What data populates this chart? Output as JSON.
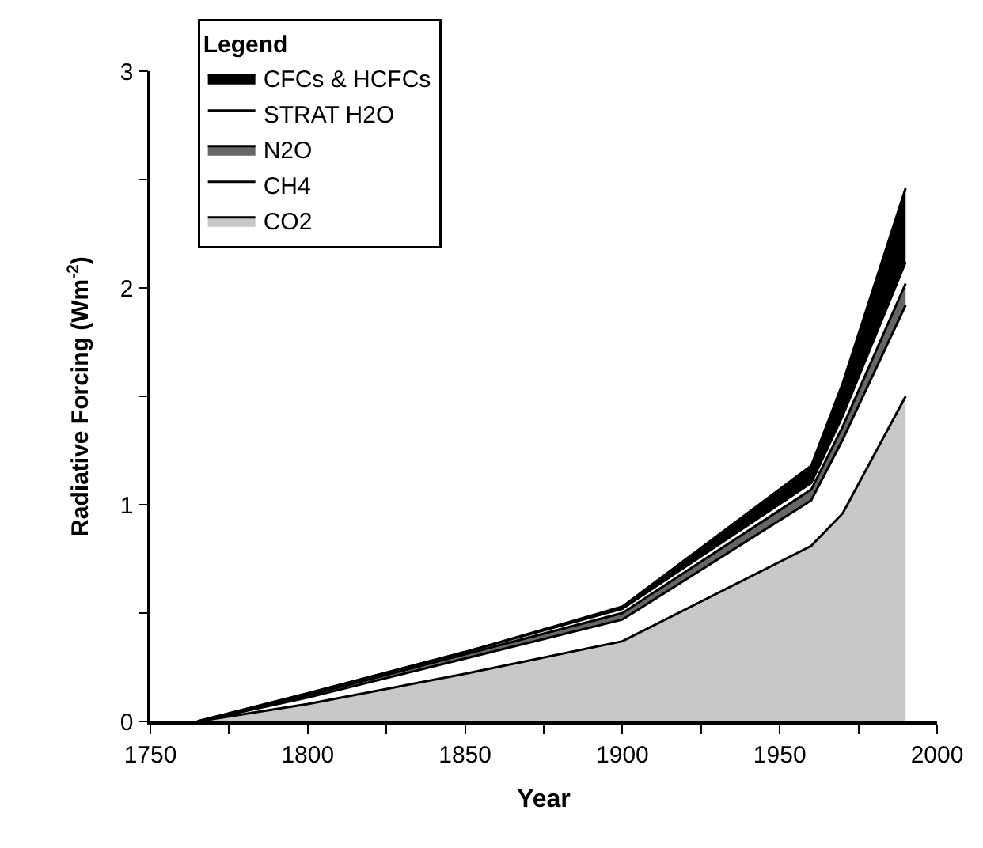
{
  "chart_data": {
    "type": "area",
    "stacked": true,
    "xlabel": "Year",
    "ylabel": "Radiative Forcing (Wm$^{-2}$)",
    "legend_title": "Legend",
    "legend": "top left",
    "grid": false,
    "marker": "none",
    "x": [
      1765,
      1800,
      1850,
      1900,
      1960,
      1970,
      1990
    ],
    "series": [
      {
        "name": "CO2",
        "color": "#c8c8c8",
        "values": [
          0,
          0.08,
          0.22,
          0.37,
          0.81,
          0.96,
          1.5
        ]
      },
      {
        "name": "CH4",
        "color": "#ffffff",
        "values": [
          0,
          0.03,
          0.07,
          0.1,
          0.21,
          0.34,
          0.42
        ]
      },
      {
        "name": "N2O",
        "color": "#666666",
        "values": [
          0,
          0.01,
          0.02,
          0.03,
          0.05,
          0.06,
          0.1
        ]
      },
      {
        "name": "STRAT H2O",
        "color": "#ffffff",
        "values": [
          0,
          0.01,
          0.01,
          0.02,
          0.03,
          0.05,
          0.1
        ]
      },
      {
        "name": "CFCs & HCFCs",
        "color": "#000000",
        "values": [
          0,
          0,
          0,
          0.01,
          0.08,
          0.15,
          0.34
        ]
      }
    ],
    "xlim": [
      1750,
      2000
    ],
    "xticks": [
      1750,
      {
        "value": 1775,
        "label": null
      },
      1800,
      {
        "value": 1825,
        "label": null
      },
      1850,
      {
        "value": 1875,
        "label": null
      },
      1900,
      {
        "value": 1925,
        "label": null
      },
      1950,
      {
        "value": 1975,
        "label": null
      },
      2000
    ],
    "ylim": [
      0,
      3
    ],
    "yticks": [
      0,
      {
        "value": 0.5,
        "label": null
      },
      1,
      {
        "value": 1.5,
        "label": null
      },
      2,
      {
        "value": 2.5,
        "label": null
      },
      3
    ]
  }
}
